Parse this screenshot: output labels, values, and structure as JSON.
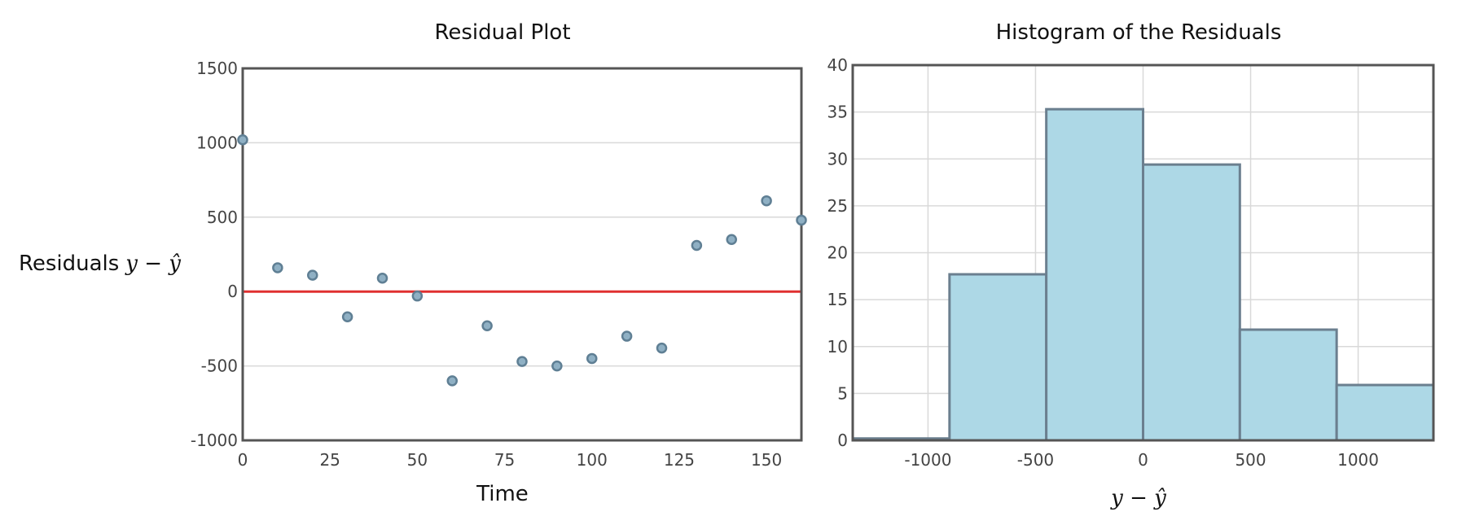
{
  "chart_data": [
    {
      "type": "scatter",
      "title": "Residual Plot",
      "xlabel": "Time",
      "ylabel": "Residuals",
      "ylabel_math": "y − ŷ",
      "xlim": [
        0,
        160
      ],
      "ylim": [
        -1000,
        1500
      ],
      "xticks": [
        0,
        25,
        50,
        75,
        100,
        125,
        150
      ],
      "yticks": [
        -1000,
        -500,
        0,
        500,
        1000,
        1500
      ],
      "grid": "horizontal",
      "reference_line": {
        "y": 0,
        "color": "#e03030"
      },
      "point_color": "#8fb0c4",
      "point_stroke": "#5f7f94",
      "points": [
        {
          "x": 0,
          "y": 1020
        },
        {
          "x": 10,
          "y": 160
        },
        {
          "x": 20,
          "y": 110
        },
        {
          "x": 30,
          "y": -170
        },
        {
          "x": 40,
          "y": 90
        },
        {
          "x": 50,
          "y": -30
        },
        {
          "x": 60,
          "y": -600
        },
        {
          "x": 70,
          "y": -230
        },
        {
          "x": 80,
          "y": -470
        },
        {
          "x": 90,
          "y": -500
        },
        {
          "x": 100,
          "y": -450
        },
        {
          "x": 110,
          "y": -300
        },
        {
          "x": 120,
          "y": -380
        },
        {
          "x": 130,
          "y": 310
        },
        {
          "x": 140,
          "y": 350
        },
        {
          "x": 150,
          "y": 610
        },
        {
          "x": 160,
          "y": 480
        }
      ]
    },
    {
      "type": "bar",
      "subtype": "histogram",
      "title": "Histogram of the Residuals",
      "xlabel_math": "y − ŷ",
      "xlim": [
        -1350,
        1350
      ],
      "ylim": [
        0,
        40
      ],
      "xticks": [
        -1000,
        -500,
        0,
        500,
        1000
      ],
      "yticks": [
        0,
        5,
        10,
        15,
        20,
        25,
        30,
        35,
        40
      ],
      "grid": "both",
      "bar_color": "#add8e6",
      "bar_stroke": "#6b7f8f",
      "bins": [
        {
          "from": -1350,
          "to": -900,
          "value": 0.2
        },
        {
          "from": -900,
          "to": -450,
          "value": 17.7
        },
        {
          "from": -450,
          "to": 0,
          "value": 35.3
        },
        {
          "from": 0,
          "to": 450,
          "value": 29.4
        },
        {
          "from": 450,
          "to": 900,
          "value": 11.8
        },
        {
          "from": 900,
          "to": 1350,
          "value": 5.9
        }
      ]
    }
  ]
}
